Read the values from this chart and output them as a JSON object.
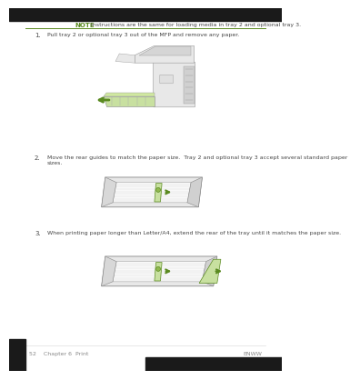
{
  "bg_color": "#ffffff",
  "note_color": "#5a8a20",
  "note_label": "NOTE",
  "note_text": "Instructions are the same for loading media in tray 2 and optional tray 3.",
  "step1_num": "1.",
  "step1_text": "Pull tray 2 or optional tray 3 out of the MFP and remove any paper.",
  "step2_num": "2.",
  "step2_text": "Move the rear guides to match the paper size.  Tray 2 and optional tray 3 accept several standard paper sizes.",
  "step3_num": "3.",
  "step3_text": "When printing paper longer than Letter/A4, extend the rear of the tray until it matches the paper size.",
  "footer_left": "52    Chapter 6  Print",
  "footer_right": "ENWW",
  "top_bar_color": "#1a1a1a",
  "bottom_bar_color": "#1a1a1a",
  "green_color": "#5a8a20",
  "light_green": "#c8e0a0",
  "text_color": "#444444",
  "gray_light": "#e8e8e8",
  "gray_mid": "#cccccc",
  "gray_dark": "#999999",
  "footer_text_color": "#888888"
}
